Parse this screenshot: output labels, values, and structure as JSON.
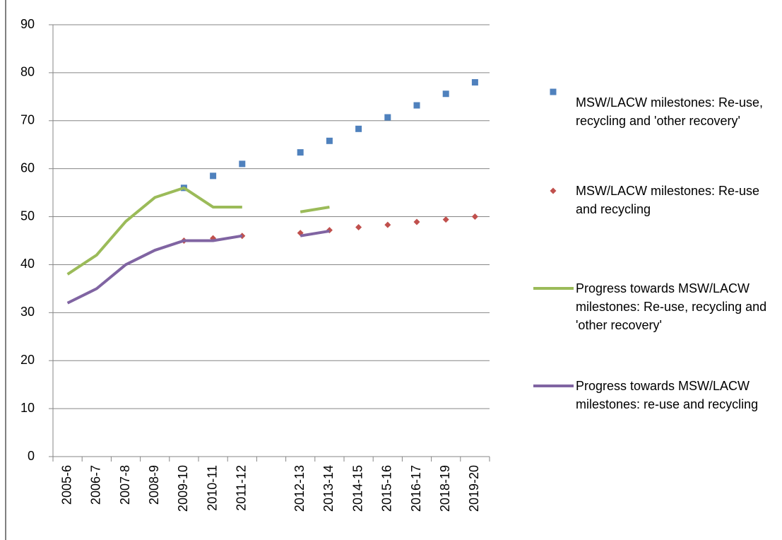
{
  "chart_data": {
    "type": "line",
    "categories": [
      "2005-6",
      "2006-7",
      "2007-8",
      "2008-9",
      "2009-10",
      "2010-11",
      "2011-12",
      null,
      "2012-13",
      "2013-14",
      "2014-15",
      "2015-16",
      "2016-17",
      "2018-19",
      "2019-20"
    ],
    "series": [
      {
        "name": "MSW/LACW milestones: Re-use, recycling and 'other recovery'",
        "color": "#4f81bd",
        "marker": "square",
        "values": [
          null,
          null,
          null,
          null,
          56,
          58.5,
          61,
          null,
          63.4,
          65.8,
          68.3,
          70.7,
          73.2,
          75.6,
          78
        ]
      },
      {
        "name": "MSW/LACW milestones: Re-use and recycling",
        "color": "#c0504d",
        "marker": "diamond",
        "values": [
          null,
          null,
          null,
          null,
          45,
          45.5,
          46,
          null,
          46.6,
          47.2,
          47.8,
          48.3,
          48.9,
          49.4,
          50
        ]
      },
      {
        "name": "Progress towards MSW/LACW milestones: Re-use, recycling and 'other recovery'",
        "color": "#9bbb59",
        "marker": "line",
        "values": [
          38,
          42,
          49,
          54,
          56,
          52,
          52,
          null,
          51,
          52,
          null,
          null,
          null,
          null,
          null
        ]
      },
      {
        "name": "Progress towards MSW/LACW milestones: re-use and recycling",
        "color": "#8064a2",
        "marker": "line",
        "values": [
          32,
          35,
          40,
          43,
          45,
          45,
          46,
          null,
          46,
          47,
          null,
          null,
          null,
          null,
          null
        ]
      }
    ],
    "ylim": [
      0,
      90
    ],
    "yticks": [
      0,
      10,
      20,
      30,
      40,
      50,
      60,
      70,
      80,
      90
    ],
    "grid": true,
    "legend": "right"
  }
}
